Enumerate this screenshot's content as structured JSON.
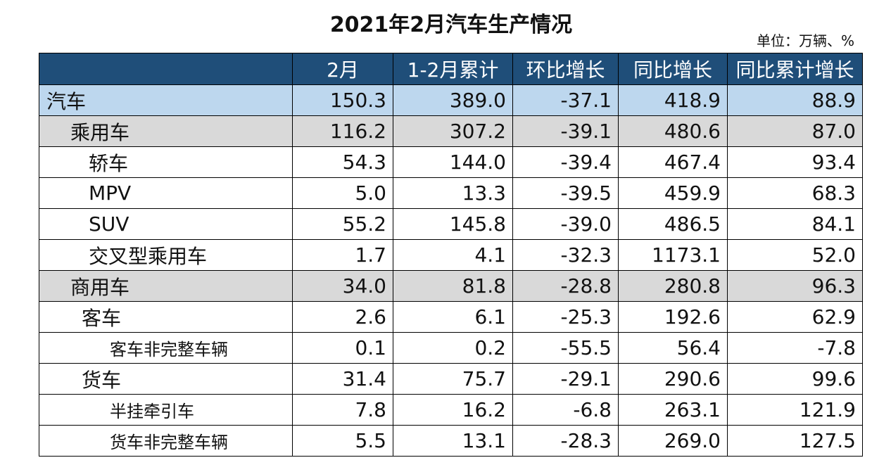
{
  "title": "2021年2月汽车生产情况",
  "unit": "单位：万辆、%",
  "table": {
    "headers": [
      "",
      "2月",
      "1-2月累计",
      "环比增长",
      "同比增长",
      "同比累计增长"
    ],
    "rows": [
      {
        "label": "汽车",
        "values": [
          "150.3",
          "389.0",
          "-37.1",
          "418.9",
          "88.9"
        ]
      },
      {
        "label": "乘用车",
        "values": [
          "116.2",
          "307.2",
          "-39.1",
          "480.6",
          "87.0"
        ]
      },
      {
        "label": "轿车",
        "values": [
          "54.3",
          "144.0",
          "-39.4",
          "467.4",
          "93.4"
        ]
      },
      {
        "label": "MPV",
        "values": [
          "5.0",
          "13.3",
          "-39.5",
          "459.9",
          "68.3"
        ]
      },
      {
        "label": "SUV",
        "values": [
          "55.2",
          "145.8",
          "-39.0",
          "486.5",
          "84.1"
        ]
      },
      {
        "label": "交叉型乘用车",
        "values": [
          "1.7",
          "4.1",
          "-32.3",
          "1173.1",
          "52.0"
        ]
      },
      {
        "label": "商用车",
        "values": [
          "34.0",
          "81.8",
          "-28.8",
          "280.8",
          "96.3"
        ]
      },
      {
        "label": "客车",
        "values": [
          "2.6",
          "6.1",
          "-25.3",
          "192.6",
          "62.9"
        ]
      },
      {
        "label": "客车非完整车辆",
        "values": [
          "0.1",
          "0.2",
          "-55.5",
          "56.4",
          "-7.8"
        ]
      },
      {
        "label": "货车",
        "values": [
          "31.4",
          "75.7",
          "-29.1",
          "290.6",
          "99.6"
        ]
      },
      {
        "label": "半挂牵引车",
        "values": [
          "7.8",
          "16.2",
          "-6.8",
          "263.1",
          "121.9"
        ]
      },
      {
        "label": "货车非完整车辆",
        "values": [
          "5.5",
          "13.1",
          "-28.3",
          "269.0",
          "127.5"
        ]
      }
    ]
  },
  "colors": {
    "header_bg": "#1f4e79",
    "total_row_bg": "#bdd7ee",
    "group_row_bg": "#d9d9d9"
  }
}
